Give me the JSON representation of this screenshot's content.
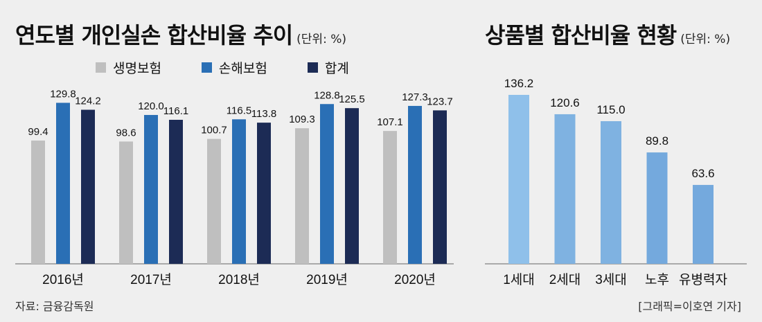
{
  "left_title": {
    "text": "연도별 개인실손 합산비율 추이",
    "unit": "(단위: %)"
  },
  "right_title": {
    "text": "상품별 합산비율 현황",
    "unit": "(단위: %)"
  },
  "legend": [
    {
      "label": "생명보험",
      "color": "#bfbfbf"
    },
    {
      "label": "손해보험",
      "color": "#2a6fb5"
    },
    {
      "label": "합계",
      "color": "#1c2b55"
    }
  ],
  "chart_data": [
    {
      "type": "bar",
      "title": "연도별 개인실손 합산비율 추이",
      "unit": "(단위: %)",
      "categories": [
        "2016년",
        "2017년",
        "2018년",
        "2019년",
        "2020년"
      ],
      "series": [
        {
          "name": "생명보험",
          "color": "#bfbfbf",
          "values": [
            99.4,
            98.6,
            100.7,
            109.3,
            107.1
          ]
        },
        {
          "name": "손해보험",
          "color": "#2a6fb5",
          "values": [
            129.8,
            120.0,
            116.5,
            128.8,
            127.3
          ]
        },
        {
          "name": "합계",
          "color": "#1c2b55",
          "values": [
            124.2,
            116.1,
            113.8,
            125.5,
            123.7
          ]
        }
      ],
      "ylim": [
        0,
        140
      ],
      "grid": false,
      "legend_position": "top"
    },
    {
      "type": "bar",
      "title": "상품별 합산비율 현황",
      "unit": "(단위: %)",
      "categories": [
        "1세대",
        "2세대",
        "3세대",
        "노후",
        "유병력자"
      ],
      "values": [
        136.2,
        120.6,
        115.0,
        89.8,
        63.6
      ],
      "colors": [
        "#8fc0ea",
        "#7fb2e1",
        "#7fb2e1",
        "#74a9dd",
        "#74a9dd"
      ],
      "ylim": [
        0,
        140
      ],
      "grid": false
    }
  ],
  "footer": {
    "source": "자료: 금융감독원",
    "credit": "[그래픽=이호연 기자]"
  }
}
